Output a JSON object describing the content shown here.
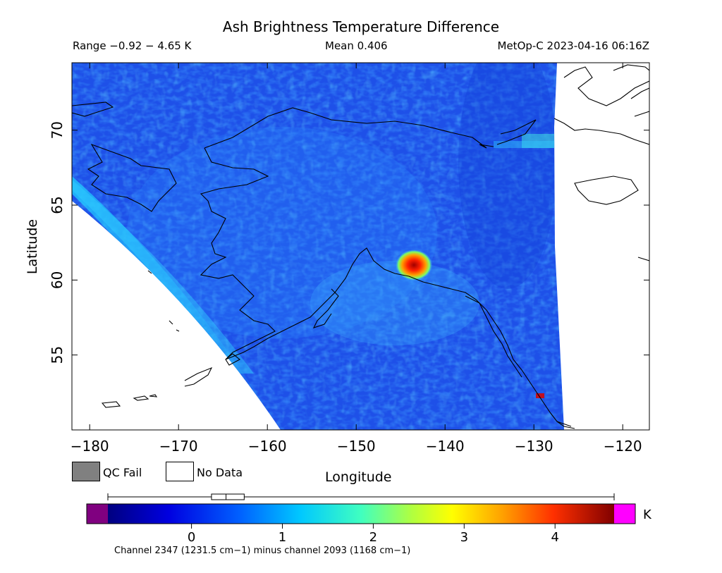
{
  "header": {
    "title": "Ash Brightness Temperature Difference",
    "range": "Range −0.92 − 4.65 K",
    "mean": "Mean 0.406",
    "satellite_time": "MetOp-C 2023-04-16 06:16Z"
  },
  "axes": {
    "xlabel": "Longitude",
    "ylabel": "Latitude",
    "x_ticks": [
      "−180",
      "−170",
      "−160",
      "−150",
      "−140",
      "−130",
      "−120"
    ],
    "y_ticks": [
      "70",
      "65",
      "60",
      "55"
    ],
    "xlim": [
      -182,
      -117
    ],
    "ylim": [
      50.0,
      74.5
    ]
  },
  "legend": {
    "qc_fail": "QC Fail",
    "no_data": "No Data",
    "qc_fail_color": "#808080",
    "no_data_color": "#ffffff"
  },
  "colorbar": {
    "unit": "K",
    "ticks": [
      "0",
      "1",
      "2",
      "3",
      "4"
    ],
    "tick_values": [
      0,
      1,
      2,
      3,
      4
    ],
    "min": -0.92,
    "max": 4.65,
    "under_color": "#800080",
    "over_color": "#ff00ff",
    "subtitle": "Channel 2347 (1231.5 cm−1) minus channel 2093 (1168 cm−1)",
    "boxplot": {
      "min": -0.92,
      "q1": 0.22,
      "median": 0.38,
      "q3": 0.58,
      "max": 4.65
    }
  },
  "hotspot": {
    "lon": -143.5,
    "lat": 61.0,
    "value": 4.2
  }
}
